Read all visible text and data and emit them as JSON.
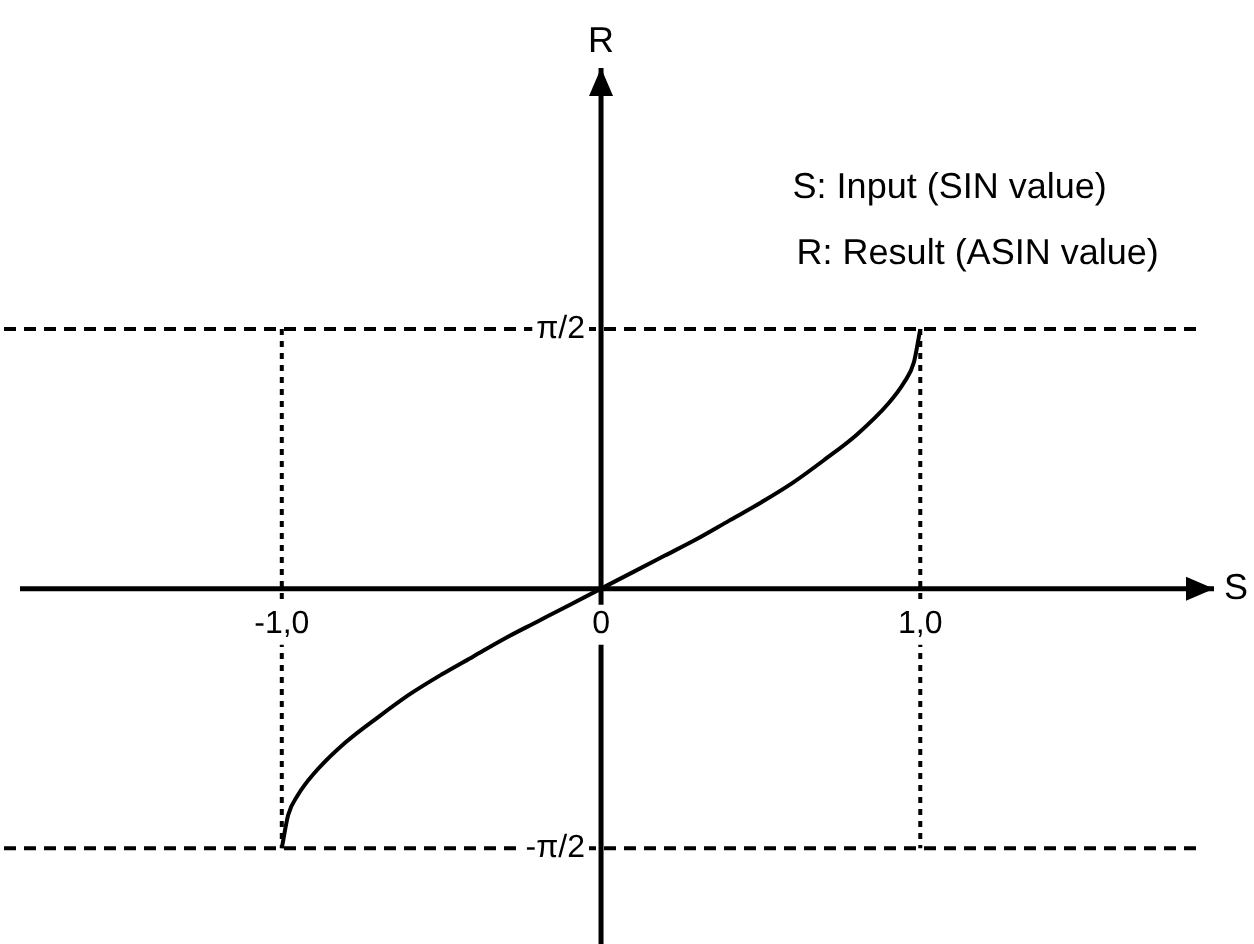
{
  "chart_data": {
    "type": "line",
    "xlabel": "S",
    "ylabel": "R",
    "annotations": [
      "S: Input (SIN value)",
      "R: Result (ASIN value)"
    ],
    "x": [
      -1,
      -0.98,
      -0.95,
      -0.9,
      -0.8,
      -0.7,
      -0.6,
      -0.5,
      -0.4,
      -0.3,
      -0.2,
      -0.1,
      0,
      0.1,
      0.2,
      0.3,
      0.4,
      0.5,
      0.6,
      0.7,
      0.8,
      0.9,
      0.95,
      0.98,
      1
    ],
    "series": [
      {
        "color": "#000000",
        "values": [
          -1.57,
          -1.37,
          -1.25,
          -1.12,
          -0.93,
          -0.78,
          -0.64,
          -0.52,
          -0.41,
          -0.3,
          -0.2,
          -0.1,
          0,
          0.1,
          0.2,
          0.3,
          0.41,
          0.52,
          0.64,
          0.78,
          0.93,
          1.12,
          1.25,
          1.37,
          1.57
        ]
      }
    ],
    "xlim": [
      -1.82,
      1.92
    ],
    "ylim": [
      -2.15,
      3.15
    ],
    "xticks": [
      {
        "value": -1,
        "label": "-1,0"
      },
      0,
      {
        "value": 1,
        "label": "1,0"
      }
    ],
    "yticks": [
      {
        "value": -1.571,
        "label": "-π/2"
      },
      {
        "value": 1.571,
        "label": "π/2"
      }
    ],
    "ref_lines": [
      {
        "axis": "x",
        "value": -1,
        "line_style": "dotted",
        "color": "#000000"
      },
      {
        "axis": "x",
        "value": 1,
        "line_style": "dotted",
        "color": "#000000"
      },
      {
        "axis": "y",
        "value": 1.571,
        "line_style": "dashed",
        "color": "#000000"
      },
      {
        "axis": "y",
        "value": -1.571,
        "line_style": "dashed",
        "color": "#000000"
      }
    ],
    "grid": false,
    "legend": false,
    "marker": "none",
    "line_style": "solid"
  }
}
